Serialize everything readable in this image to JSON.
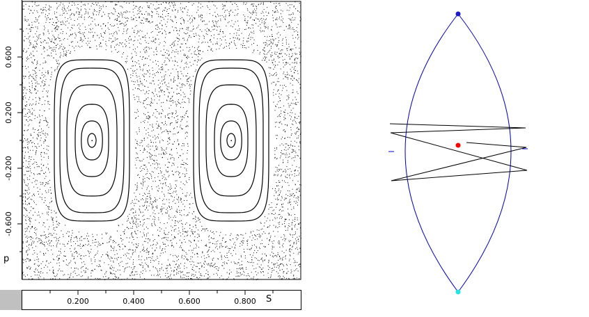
{
  "phase_plot": {
    "x_axis_label": "S",
    "y_axis_label": "p",
    "x_ticks": [
      "0.200",
      "0.400",
      "0.600",
      "0.800"
    ],
    "y_ticks": [
      "0.600",
      "0.200",
      "-0.200",
      "-0.600"
    ],
    "xlim": [
      0,
      1
    ],
    "ylim": [
      -1,
      1
    ],
    "islands": [
      {
        "center_s": 0.25,
        "center_p": 0.0
      },
      {
        "center_s": 0.75,
        "center_p": 0.0
      }
    ]
  },
  "billiard": {
    "shape": "lens",
    "boundary_color": "#0000cc",
    "trajectory_color": "#000000",
    "top_vertex_color": "#1a1ad0",
    "bottom_vertex_color": "#22e5e5",
    "particle_color": "#ff0000"
  }
}
